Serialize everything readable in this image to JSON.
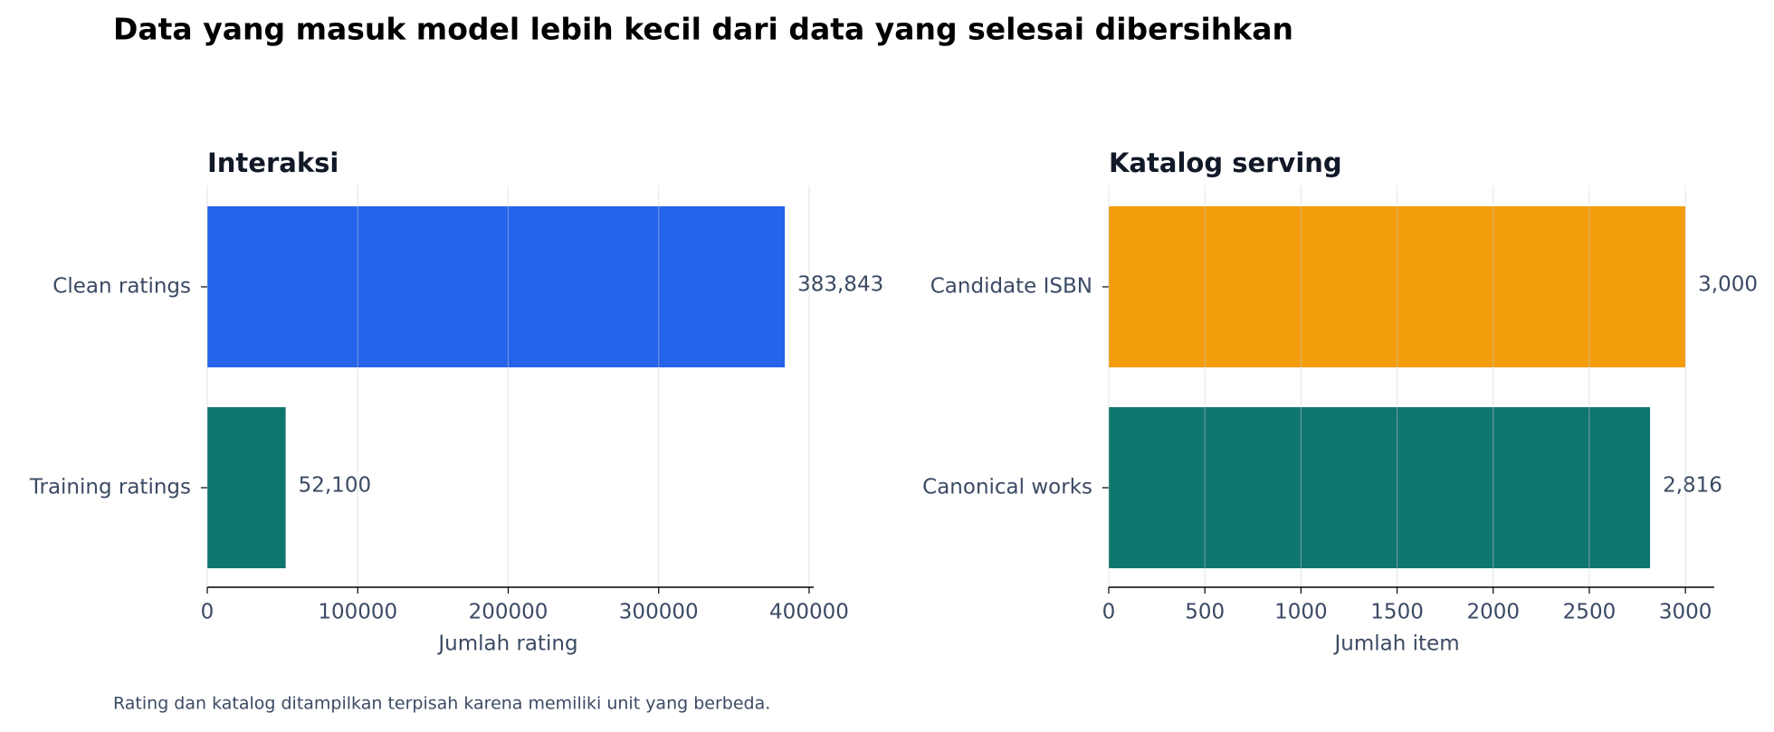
{
  "title": "Data yang masuk model lebih kecil dari data yang selesai dibersihkan",
  "note": "Rating dan katalog ditampilkan terpisah karena memiliki unit yang berbeda.",
  "chart_data": [
    {
      "type": "barh",
      "title": "Interaksi",
      "x_label": "Jumlah rating",
      "categories": [
        "Clean ratings",
        "Training ratings"
      ],
      "values": [
        383843,
        52100
      ],
      "value_labels": [
        "383,843",
        "52,100"
      ],
      "colors": [
        "#2563eb",
        "#0f766e"
      ],
      "xlim": [
        0,
        403035
      ],
      "xticks": [
        0,
        100000,
        200000,
        300000,
        400000
      ],
      "grid": true
    },
    {
      "type": "barh",
      "title": "Katalog serving",
      "x_label": "Jumlah item",
      "categories": [
        "Candidate ISBN",
        "Canonical works"
      ],
      "values": [
        3000,
        2816
      ],
      "value_labels": [
        "3,000",
        "2,816"
      ],
      "colors": [
        "#f39c0c",
        "#0f766e"
      ],
      "xlim": [
        0,
        3150
      ],
      "xticks": [
        0,
        500,
        1000,
        1500,
        2000,
        2500,
        3000
      ],
      "grid": true
    }
  ]
}
